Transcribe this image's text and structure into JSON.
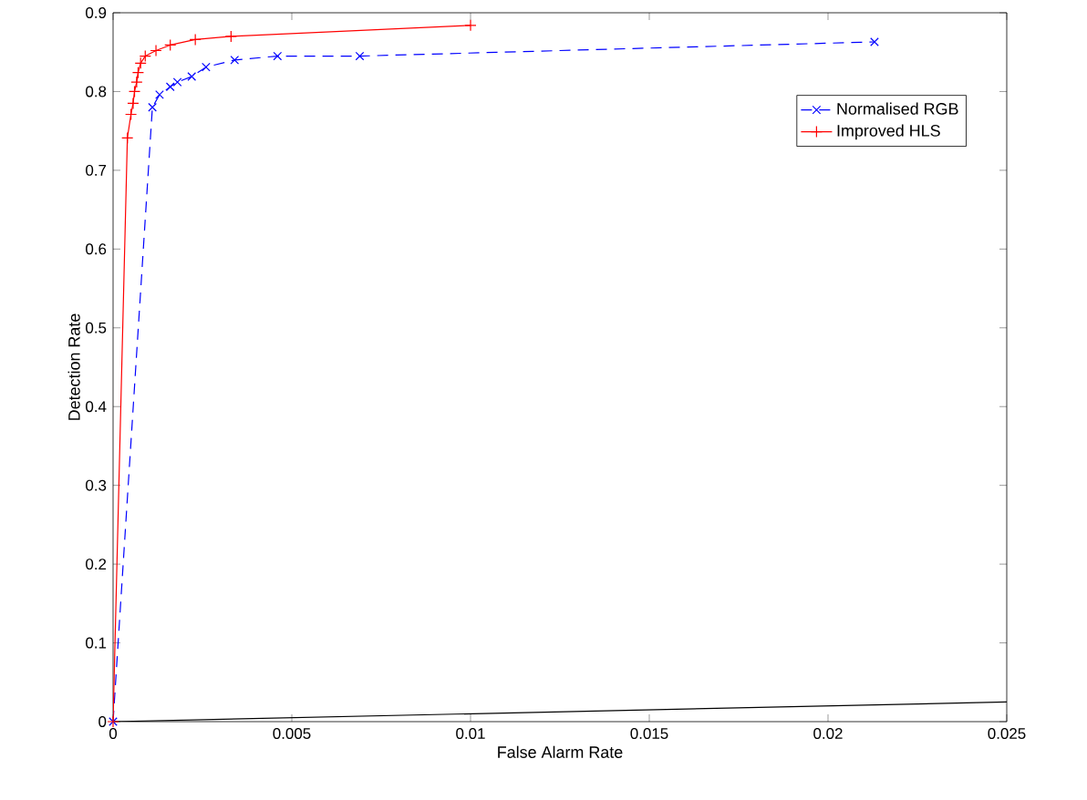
{
  "chart_data": {
    "type": "line",
    "xlabel": "False Alarm Rate",
    "ylabel": "Detection Rate",
    "xlim": [
      0,
      0.025
    ],
    "ylim": [
      0,
      0.9
    ],
    "xticks": [
      0,
      0.005,
      0.01,
      0.015,
      0.02,
      0.025
    ],
    "yticks": [
      0,
      0.1,
      0.2,
      0.3,
      0.4,
      0.5,
      0.6,
      0.7,
      0.8,
      0.9
    ],
    "grid": false,
    "legend": "top right",
    "series": [
      {
        "name": "Normalised RGB",
        "color": "#0000ff",
        "marker": "cross",
        "line_style": "dashed",
        "x": [
          0,
          0.0011,
          0.0013,
          0.0016,
          0.0018,
          0.0022,
          0.0026,
          0.0034,
          0.0046,
          0.0069,
          0.0213
        ],
        "values": [
          0,
          0.78,
          0.796,
          0.806,
          0.812,
          0.819,
          0.831,
          0.84,
          0.845,
          0.845,
          0.863
        ]
      },
      {
        "name": "Improved HLS",
        "color": "#ff0000",
        "marker": "plus",
        "line_style": "solid",
        "x": [
          0,
          0.0004,
          0.0005,
          0.00056,
          0.0006,
          0.00066,
          0.0007,
          0.00077,
          0.0009,
          0.0012,
          0.0016,
          0.0023,
          0.0033,
          0.01
        ],
        "values": [
          0,
          0.741,
          0.771,
          0.785,
          0.8,
          0.812,
          0.824,
          0.836,
          0.845,
          0.852,
          0.859,
          0.866,
          0.87,
          0.884
        ]
      },
      {
        "color": "#000000",
        "marker": "none",
        "line_style": "solid",
        "x": [
          0,
          0.025
        ],
        "values": [
          0,
          0.025
        ]
      }
    ]
  }
}
